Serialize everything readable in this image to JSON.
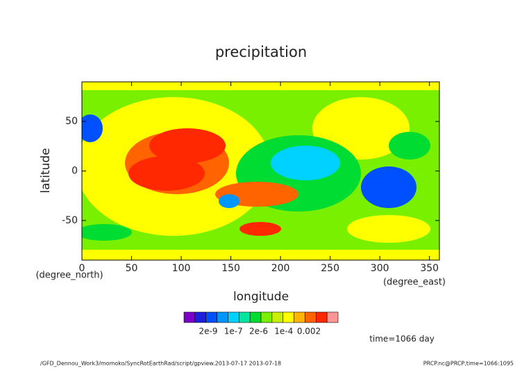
{
  "chart_data": {
    "type": "contour",
    "title": "precipitation",
    "x_label": "longitude",
    "x_unit": "(degree_east)",
    "y_label": "latitude",
    "y_unit": "(degree_north)",
    "xlim": [
      0,
      360
    ],
    "xticks": [
      0,
      50,
      100,
      150,
      200,
      250,
      300,
      350
    ],
    "ylim": [
      -90,
      90
    ],
    "yticks": [
      -50,
      0,
      50
    ],
    "colorbar": {
      "colors": [
        "#7a00c8",
        "#1e1edc",
        "#0050ff",
        "#0096ff",
        "#00d2ff",
        "#00e6a0",
        "#00dc32",
        "#78f000",
        "#c8f000",
        "#ffff00",
        "#ffb400",
        "#ff6400",
        "#ff2800",
        "#ff9696"
      ],
      "ticks": [
        {
          "value": 2e-09,
          "label": "2e-9"
        },
        {
          "value": 1e-07,
          "label": "1e-7"
        },
        {
          "value": 2e-06,
          "label": "2e-6"
        },
        {
          "value": 0.0001,
          "label": "1e-4"
        },
        0.002
      ]
    },
    "annotation": "time=1066 day",
    "footer_left": "/GFD_Dennou_Work3/momoko/SyncRotEarthRad/script/gpview.2013-07-17  2013-07-18",
    "footer_right": "PRCP.nc@PRCP,time=1066:1095"
  }
}
